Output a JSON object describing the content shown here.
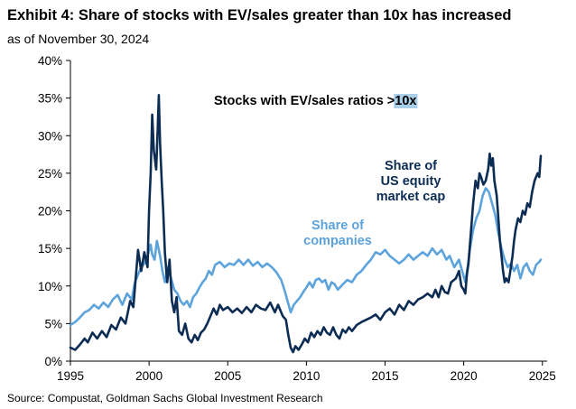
{
  "header": {
    "title": "Exhibit 4: Share of stocks with EV/sales greater than 10x has increased",
    "subtitle": "as of November 30, 2024"
  },
  "footer": {
    "source": "Source: Compustat, Goldman Sachs Global Investment Research"
  },
  "colors": {
    "market_cap": "#0c2c54",
    "companies": "#5da3dc",
    "highlight": "#a9cfe9"
  },
  "chart_data": {
    "type": "line",
    "title": "Stocks with EV/sales ratios >10x",
    "title_parts": {
      "prefix": "Stocks with EV/sales ratios >",
      "highlight": "10x"
    },
    "xlabel": "",
    "ylabel": "",
    "xlim": [
      1995,
      2025.3
    ],
    "ylim": [
      0,
      40
    ],
    "x_ticks": [
      1995,
      2000,
      2005,
      2010,
      2015,
      2020,
      2025
    ],
    "y_ticks": [
      0,
      5,
      10,
      15,
      20,
      25,
      30,
      35,
      40
    ],
    "y_tick_labels": [
      "0%",
      "5%",
      "10%",
      "15%",
      "20%",
      "25%",
      "30%",
      "35%",
      "40%"
    ],
    "series": [
      {
        "name": "Share of US equity market cap",
        "label_lines": [
          "Share of",
          "US equity",
          "market cap"
        ],
        "color": "#0c2c54",
        "points": [
          [
            1995.0,
            1.8
          ],
          [
            1995.3,
            1.5
          ],
          [
            1995.6,
            2.2
          ],
          [
            1995.9,
            3.0
          ],
          [
            1996.1,
            2.5
          ],
          [
            1996.4,
            3.8
          ],
          [
            1996.7,
            3.0
          ],
          [
            1997.0,
            4.0
          ],
          [
            1997.3,
            3.2
          ],
          [
            1997.6,
            4.8
          ],
          [
            1997.9,
            4.2
          ],
          [
            1998.2,
            5.8
          ],
          [
            1998.5,
            5.0
          ],
          [
            1998.8,
            8.0
          ],
          [
            1999.0,
            7.2
          ],
          [
            1999.3,
            14.8
          ],
          [
            1999.5,
            12.0
          ],
          [
            1999.7,
            14.5
          ],
          [
            1999.9,
            12.5
          ],
          [
            2000.0,
            20.0
          ],
          [
            2000.1,
            25.0
          ],
          [
            2000.2,
            32.8
          ],
          [
            2000.3,
            28.0
          ],
          [
            2000.45,
            25.5
          ],
          [
            2000.55,
            31.0
          ],
          [
            2000.62,
            35.4
          ],
          [
            2000.7,
            29.0
          ],
          [
            2000.8,
            24.0
          ],
          [
            2000.9,
            20.0
          ],
          [
            2001.0,
            14.5
          ],
          [
            2001.15,
            10.5
          ],
          [
            2001.3,
            13.5
          ],
          [
            2001.45,
            8.0
          ],
          [
            2001.6,
            6.5
          ],
          [
            2001.75,
            8.5
          ],
          [
            2001.9,
            4.0
          ],
          [
            2002.1,
            3.5
          ],
          [
            2002.3,
            5.0
          ],
          [
            2002.5,
            3.0
          ],
          [
            2002.7,
            2.5
          ],
          [
            2002.9,
            3.5
          ],
          [
            2003.1,
            2.8
          ],
          [
            2003.3,
            3.8
          ],
          [
            2003.5,
            4.2
          ],
          [
            2003.7,
            5.0
          ],
          [
            2003.9,
            6.0
          ],
          [
            2004.1,
            7.0
          ],
          [
            2004.3,
            6.2
          ],
          [
            2004.5,
            7.5
          ],
          [
            2004.7,
            6.8
          ],
          [
            2005.0,
            7.2
          ],
          [
            2005.3,
            6.5
          ],
          [
            2005.6,
            7.0
          ],
          [
            2005.9,
            6.4
          ],
          [
            2006.2,
            7.2
          ],
          [
            2006.5,
            6.5
          ],
          [
            2006.8,
            7.5
          ],
          [
            2007.1,
            7.0
          ],
          [
            2007.4,
            6.8
          ],
          [
            2007.7,
            7.8
          ],
          [
            2008.0,
            6.5
          ],
          [
            2008.2,
            7.5
          ],
          [
            2008.5,
            6.0
          ],
          [
            2008.7,
            5.5
          ],
          [
            2008.85,
            3.5
          ],
          [
            2009.0,
            1.8
          ],
          [
            2009.15,
            1.2
          ],
          [
            2009.3,
            2.0
          ],
          [
            2009.5,
            1.5
          ],
          [
            2009.7,
            2.2
          ],
          [
            2009.9,
            3.0
          ],
          [
            2010.1,
            2.5
          ],
          [
            2010.3,
            3.8
          ],
          [
            2010.5,
            3.2
          ],
          [
            2010.7,
            4.0
          ],
          [
            2010.9,
            3.5
          ],
          [
            2011.1,
            4.5
          ],
          [
            2011.3,
            3.8
          ],
          [
            2011.5,
            3.5
          ],
          [
            2011.7,
            4.5
          ],
          [
            2011.9,
            3.5
          ],
          [
            2012.1,
            3.0
          ],
          [
            2012.3,
            4.2
          ],
          [
            2012.5,
            3.8
          ],
          [
            2012.7,
            4.5
          ],
          [
            2012.9,
            4.0
          ],
          [
            2013.2,
            4.8
          ],
          [
            2013.5,
            5.2
          ],
          [
            2013.8,
            5.5
          ],
          [
            2014.1,
            5.8
          ],
          [
            2014.4,
            6.2
          ],
          [
            2014.7,
            5.5
          ],
          [
            2015.0,
            6.5
          ],
          [
            2015.3,
            7.0
          ],
          [
            2015.6,
            6.2
          ],
          [
            2015.9,
            7.5
          ],
          [
            2016.2,
            6.8
          ],
          [
            2016.5,
            8.0
          ],
          [
            2016.8,
            7.5
          ],
          [
            2017.1,
            8.2
          ],
          [
            2017.4,
            8.5
          ],
          [
            2017.7,
            9.0
          ],
          [
            2018.0,
            8.5
          ],
          [
            2018.2,
            9.5
          ],
          [
            2018.4,
            8.5
          ],
          [
            2018.6,
            10.0
          ],
          [
            2018.8,
            9.2
          ],
          [
            2019.0,
            9.0
          ],
          [
            2019.2,
            10.5
          ],
          [
            2019.5,
            11.0
          ],
          [
            2019.7,
            12.0
          ],
          [
            2019.85,
            10.0
          ],
          [
            2020.0,
            9.5
          ],
          [
            2020.1,
            9.0
          ],
          [
            2020.2,
            11.5
          ],
          [
            2020.3,
            13.0
          ],
          [
            2020.45,
            17.0
          ],
          [
            2020.6,
            21.0
          ],
          [
            2020.75,
            24.0
          ],
          [
            2020.9,
            23.0
          ],
          [
            2021.0,
            25.0
          ],
          [
            2021.1,
            24.5
          ],
          [
            2021.25,
            23.5
          ],
          [
            2021.4,
            24.0
          ],
          [
            2021.55,
            25.5
          ],
          [
            2021.65,
            27.6
          ],
          [
            2021.75,
            26.0
          ],
          [
            2021.85,
            27.0
          ],
          [
            2021.95,
            24.0
          ],
          [
            2022.1,
            22.0
          ],
          [
            2022.2,
            19.0
          ],
          [
            2022.3,
            16.0
          ],
          [
            2022.4,
            14.0
          ],
          [
            2022.5,
            12.0
          ],
          [
            2022.6,
            10.5
          ],
          [
            2022.7,
            11.0
          ],
          [
            2022.85,
            10.5
          ],
          [
            2023.0,
            12.5
          ],
          [
            2023.1,
            14.0
          ],
          [
            2023.2,
            16.0
          ],
          [
            2023.3,
            17.5
          ],
          [
            2023.45,
            19.0
          ],
          [
            2023.6,
            18.5
          ],
          [
            2023.75,
            20.0
          ],
          [
            2023.9,
            19.5
          ],
          [
            2024.05,
            21.0
          ],
          [
            2024.2,
            20.5
          ],
          [
            2024.35,
            22.5
          ],
          [
            2024.5,
            24.0
          ],
          [
            2024.6,
            24.5
          ],
          [
            2024.7,
            25.0
          ],
          [
            2024.8,
            24.5
          ],
          [
            2024.9,
            27.3
          ]
        ]
      },
      {
        "name": "Share of companies",
        "label_lines": [
          "Share of",
          "companies"
        ],
        "color": "#5da3dc",
        "points": [
          [
            1995.0,
            4.8
          ],
          [
            1995.3,
            5.2
          ],
          [
            1995.6,
            5.8
          ],
          [
            1995.9,
            6.5
          ],
          [
            1996.2,
            6.8
          ],
          [
            1996.5,
            7.5
          ],
          [
            1996.8,
            7.0
          ],
          [
            1997.1,
            7.8
          ],
          [
            1997.4,
            7.2
          ],
          [
            1997.7,
            8.2
          ],
          [
            1998.0,
            8.8
          ],
          [
            1998.3,
            7.5
          ],
          [
            1998.6,
            9.0
          ],
          [
            1998.9,
            8.2
          ],
          [
            1999.1,
            10.5
          ],
          [
            1999.3,
            11.5
          ],
          [
            1999.5,
            12.5
          ],
          [
            1999.7,
            13.0
          ],
          [
            1999.9,
            14.0
          ],
          [
            2000.1,
            15.5
          ],
          [
            2000.2,
            14.2
          ],
          [
            2000.35,
            13.5
          ],
          [
            2000.5,
            16.0
          ],
          [
            2000.7,
            14.0
          ],
          [
            2000.85,
            12.0
          ],
          [
            2001.0,
            10.5
          ],
          [
            2001.2,
            12.5
          ],
          [
            2001.4,
            11.0
          ],
          [
            2001.6,
            9.5
          ],
          [
            2001.8,
            9.0
          ],
          [
            2002.0,
            8.0
          ],
          [
            2002.2,
            7.5
          ],
          [
            2002.4,
            8.0
          ],
          [
            2002.6,
            7.2
          ],
          [
            2002.8,
            8.5
          ],
          [
            2003.0,
            9.0
          ],
          [
            2003.2,
            9.8
          ],
          [
            2003.4,
            10.5
          ],
          [
            2003.6,
            11.0
          ],
          [
            2003.8,
            12.0
          ],
          [
            2004.0,
            11.5
          ],
          [
            2004.2,
            12.8
          ],
          [
            2004.5,
            13.2
          ],
          [
            2004.8,
            12.5
          ],
          [
            2005.1,
            13.0
          ],
          [
            2005.4,
            12.8
          ],
          [
            2005.7,
            13.5
          ],
          [
            2006.0,
            12.8
          ],
          [
            2006.3,
            13.5
          ],
          [
            2006.6,
            12.7
          ],
          [
            2006.9,
            13.2
          ],
          [
            2007.2,
            12.5
          ],
          [
            2007.5,
            13.0
          ],
          [
            2007.8,
            12.5
          ],
          [
            2008.1,
            11.8
          ],
          [
            2008.4,
            10.8
          ],
          [
            2008.6,
            9.5
          ],
          [
            2008.8,
            8.0
          ],
          [
            2009.0,
            6.5
          ],
          [
            2009.2,
            7.5
          ],
          [
            2009.4,
            8.0
          ],
          [
            2009.6,
            8.5
          ],
          [
            2009.8,
            9.2
          ],
          [
            2010.0,
            9.8
          ],
          [
            2010.2,
            10.5
          ],
          [
            2010.4,
            9.8
          ],
          [
            2010.6,
            10.8
          ],
          [
            2010.8,
            11.0
          ],
          [
            2011.0,
            10.5
          ],
          [
            2011.2,
            10.8
          ],
          [
            2011.4,
            9.5
          ],
          [
            2011.6,
            10.5
          ],
          [
            2011.8,
            10.2
          ],
          [
            2012.0,
            9.5
          ],
          [
            2012.3,
            10.2
          ],
          [
            2012.6,
            10.8
          ],
          [
            2012.9,
            10.5
          ],
          [
            2013.2,
            11.5
          ],
          [
            2013.5,
            12.0
          ],
          [
            2013.8,
            12.8
          ],
          [
            2014.1,
            13.5
          ],
          [
            2014.4,
            14.5
          ],
          [
            2014.7,
            14.2
          ],
          [
            2015.0,
            14.8
          ],
          [
            2015.3,
            14.0
          ],
          [
            2015.6,
            13.5
          ],
          [
            2015.9,
            13.0
          ],
          [
            2016.2,
            13.5
          ],
          [
            2016.5,
            14.2
          ],
          [
            2016.8,
            13.5
          ],
          [
            2017.1,
            14.0
          ],
          [
            2017.4,
            14.5
          ],
          [
            2017.7,
            14.0
          ],
          [
            2018.0,
            15.0
          ],
          [
            2018.3,
            14.2
          ],
          [
            2018.6,
            14.8
          ],
          [
            2018.9,
            13.5
          ],
          [
            2019.1,
            14.0
          ],
          [
            2019.4,
            12.5
          ],
          [
            2019.7,
            13.5
          ],
          [
            2019.9,
            12.0
          ],
          [
            2020.1,
            10.5
          ],
          [
            2020.25,
            12.5
          ],
          [
            2020.4,
            15.0
          ],
          [
            2020.6,
            17.5
          ],
          [
            2020.8,
            19.0
          ],
          [
            2021.0,
            20.0
          ],
          [
            2021.2,
            22.0
          ],
          [
            2021.4,
            23.0
          ],
          [
            2021.6,
            22.5
          ],
          [
            2021.8,
            21.0
          ],
          [
            2022.0,
            19.5
          ],
          [
            2022.2,
            17.0
          ],
          [
            2022.4,
            15.0
          ],
          [
            2022.6,
            13.5
          ],
          [
            2022.8,
            12.5
          ],
          [
            2023.0,
            13.0
          ],
          [
            2023.2,
            12.0
          ],
          [
            2023.4,
            12.8
          ],
          [
            2023.6,
            11.0
          ],
          [
            2023.8,
            12.5
          ],
          [
            2024.0,
            13.0
          ],
          [
            2024.2,
            12.0
          ],
          [
            2024.4,
            11.5
          ],
          [
            2024.6,
            12.8
          ],
          [
            2024.8,
            13.2
          ],
          [
            2024.9,
            13.5
          ]
        ]
      }
    ]
  }
}
